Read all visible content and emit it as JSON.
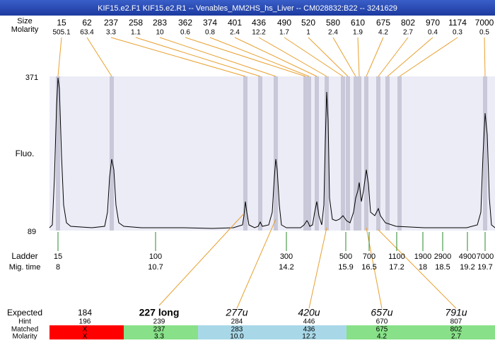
{
  "title": "KIF15.e2.F1  KIF15.e2.R1 -- Venables_MM2HS_hs_Liver -- CM028832:B22 -- 3241629",
  "header": {
    "size_label": "Size",
    "molarity_label": "Molarity"
  },
  "peaks": [
    {
      "size": "15",
      "molarity": "505.1"
    },
    {
      "size": "62",
      "molarity": "63.4"
    },
    {
      "size": "237",
      "molarity": "3.3"
    },
    {
      "size": "258",
      "molarity": "1.1"
    },
    {
      "size": "283",
      "molarity": "10"
    },
    {
      "size": "362",
      "molarity": "0.6"
    },
    {
      "size": "374",
      "molarity": "0.8"
    },
    {
      "size": "401",
      "molarity": "2.4"
    },
    {
      "size": "436",
      "molarity": "12.2"
    },
    {
      "size": "490",
      "molarity": "1.7"
    },
    {
      "size": "520",
      "molarity": "1"
    },
    {
      "size": "580",
      "molarity": "2.4"
    },
    {
      "size": "610",
      "molarity": "1.9"
    },
    {
      "size": "675",
      "molarity": "4.2"
    },
    {
      "size": "802",
      "molarity": "2.7"
    },
    {
      "size": "970",
      "molarity": "0.4"
    },
    {
      "size": "1174",
      "molarity": "0.3"
    },
    {
      "size": "7000",
      "molarity": "0.5"
    }
  ],
  "plot": {
    "y_max_label": "371",
    "y_min_label": "89",
    "y_axis_label": "Fluo."
  },
  "ladder": {
    "label": "Ladder",
    "time_label": "Mig. time",
    "entries": [
      {
        "size": "15",
        "time": "8"
      },
      {
        "size": "100",
        "time": "10.7"
      },
      {
        "size": "300",
        "time": "14.2"
      },
      {
        "size": "500",
        "time": "15.9"
      },
      {
        "size": "700",
        "time": "16.5"
      },
      {
        "size": "1100",
        "time": "17.2"
      },
      {
        "size": "1900",
        "time": "18"
      },
      {
        "size": "2900",
        "time": "18.5"
      },
      {
        "size": "4900",
        "time": "19.2"
      },
      {
        "size": "7000",
        "time": "19.7"
      }
    ]
  },
  "expected": {
    "labels": {
      "expected": "Expected",
      "hint": "Hint",
      "matched": "Matched",
      "molarity": "Molarity"
    },
    "columns": [
      {
        "expected": "184",
        "hint": "196",
        "matched": "X",
        "molarity": "X"
      },
      {
        "expected": "227 long",
        "hint": "239",
        "matched": "237",
        "molarity": "3.3"
      },
      {
        "expected": "277u",
        "hint": "284",
        "matched": "283",
        "molarity": "10.0"
      },
      {
        "expected": "420u",
        "hint": "446",
        "matched": "436",
        "molarity": "12.2"
      },
      {
        "expected": "657u",
        "hint": "670",
        "matched": "675",
        "molarity": "4.2"
      },
      {
        "expected": "791u",
        "hint": "807",
        "matched": "802",
        "molarity": "2.7"
      }
    ]
  }
}
